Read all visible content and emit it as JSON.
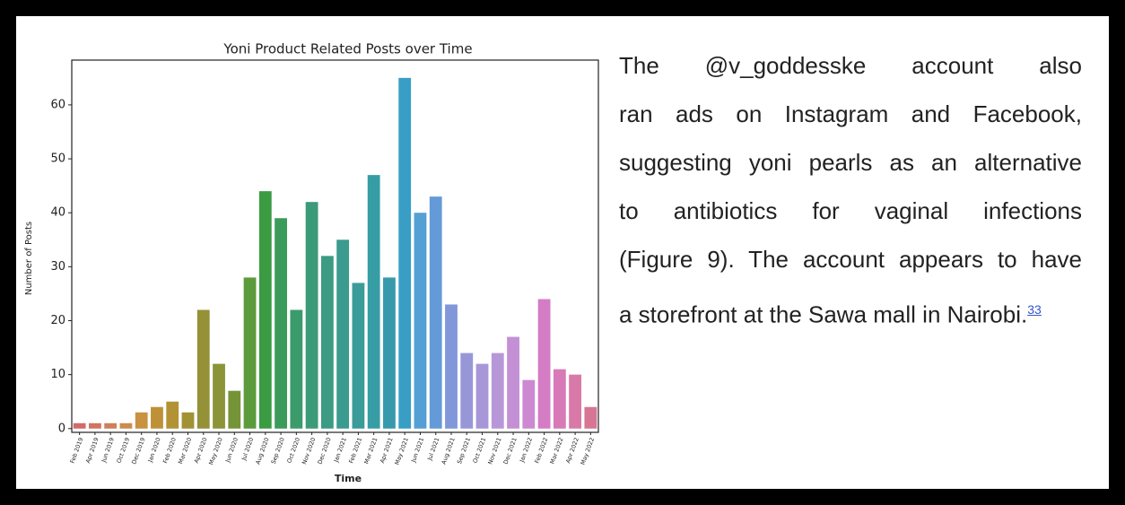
{
  "chart_data": {
    "type": "bar",
    "title": "Yoni Product Related Posts over Time",
    "x_label": "Time",
    "y_label": "Number of Posts",
    "categories": [
      "Feb 2019",
      "Apr 2019",
      "Jun 2019",
      "Oct 2019",
      "Dec 2019",
      "Jan 2020",
      "Feb 2020",
      "Mar 2020",
      "Apr 2020",
      "May 2020",
      "Jun 2020",
      "Jul 2020",
      "Aug 2020",
      "Sep 2020",
      "Oct 2020",
      "Nov 2020",
      "Dec 2020",
      "Jan 2021",
      "Feb 2021",
      "Mar 2021",
      "Apr 2021",
      "May 2021",
      "Jun 2021",
      "Jul 2021",
      "Aug 2021",
      "Sep 2021",
      "Oct 2021",
      "Nov 2021",
      "Dec 2021",
      "Jan 2022",
      "Feb 2022",
      "Mar 2022",
      "Apr 2022",
      "May 2022"
    ],
    "values": [
      1,
      1,
      1,
      1,
      3,
      4,
      5,
      3,
      22,
      12,
      7,
      28,
      44,
      39,
      22,
      42,
      32,
      35,
      27,
      47,
      28,
      65,
      40,
      43,
      23,
      14,
      12,
      14,
      17,
      9,
      24,
      11,
      10,
      4
    ],
    "colors": [
      "hsl(0,55%,62%)",
      "hsl(10,55%,60%)",
      "hsl(20,55%,58%)",
      "hsl(30,55%,55%)",
      "hsl(36,55%,52%)",
      "hsl(40,55%,48%)",
      "hsl(45,55%,45%)",
      "hsl(52,50%,42%)",
      "hsl(58,45%,40%)",
      "hsl(66,45%,40%)",
      "hsl(80,45%,40%)",
      "hsl(100,45%,42%)",
      "hsl(125,45%,42%)",
      "hsl(140,45%,42%)",
      "hsl(150,45%,42%)",
      "hsl(158,45%,42%)",
      "hsl(165,45%,42%)",
      "hsl(172,45%,42%)",
      "hsl(178,45%,42%)",
      "hsl(184,50%,43%)",
      "hsl(190,50%,45%)",
      "hsl(197,55%,50%)",
      "hsl(205,60%,58%)",
      "hsl(212,60%,62%)",
      "hsl(225,55%,68%)",
      "hsl(240,45%,72%)",
      "hsl(255,45%,72%)",
      "hsl(270,45%,72%)",
      "hsl(285,45%,70%)",
      "hsl(295,45%,68%)",
      "hsl(310,50%,66%)",
      "hsl(320,55%,66%)",
      "hsl(330,55%,66%)",
      "hsl(340,55%,65%)"
    ],
    "ylim": [
      -0.7,
      68.3
    ],
    "yticks": [
      0,
      10,
      20,
      30,
      40,
      50,
      60
    ]
  },
  "text": {
    "lines": [
      "The @v_goddesske account also",
      "ran ads on Instagram and Facebook,",
      "suggesting yoni pearls as an alternative",
      "to antibiotics for vaginal infections",
      "(Figure 9). The account appears to have",
      "a storefront at the Sawa mall in Nairobi."
    ],
    "footnote": "33"
  }
}
